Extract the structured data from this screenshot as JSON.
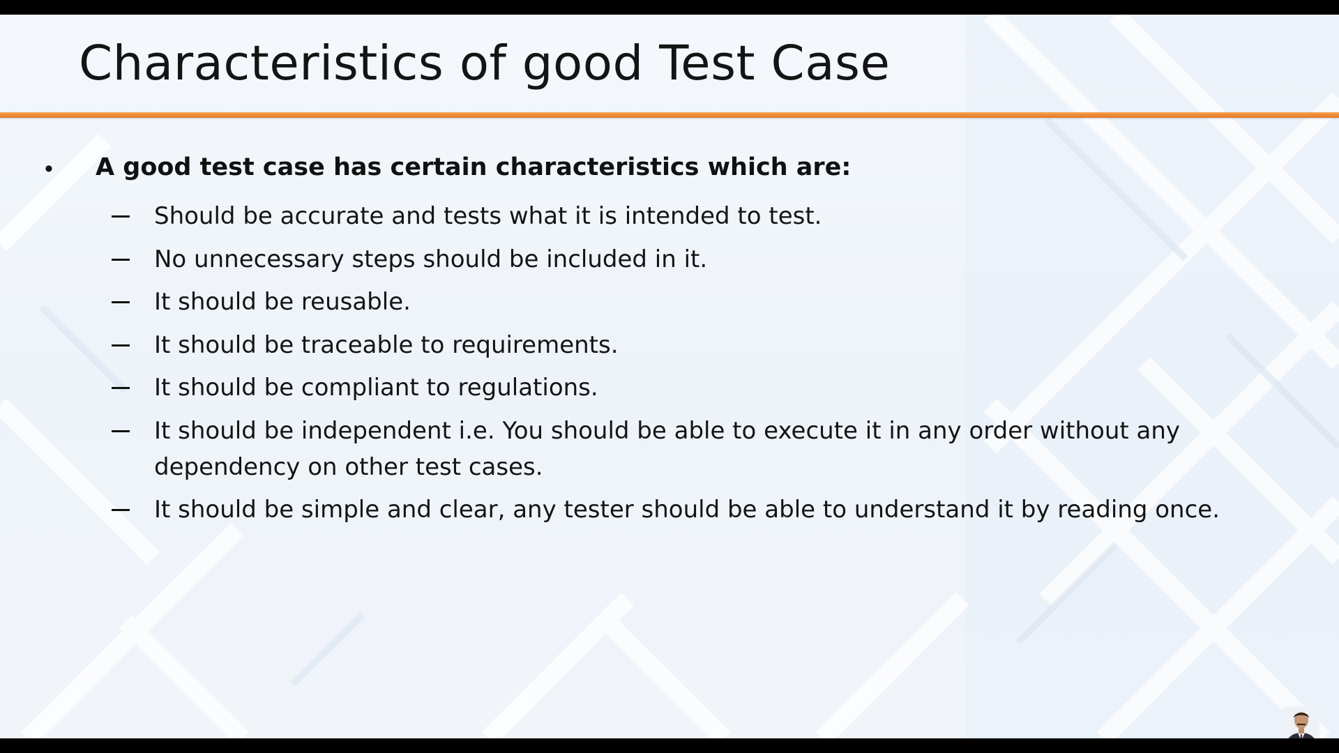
{
  "slide": {
    "title": "Characteristics of good Test Case",
    "accent_color": "#ee8530",
    "lead_bullet": "A good test case has certain characteristics which are:",
    "bullet_glyph": "•",
    "sub_items": [
      "Should be accurate and tests what it is intended to test.",
      "No unnecessary steps should be included in it.",
      "It should be reusable.",
      "It should be traceable to requirements.",
      "It should be compliant to regulations.",
      "It should be independent i.e. You should be able to execute it in any order without any dependency on other test cases.",
      "It should be simple and clear, any tester should be able to understand it by reading once."
    ],
    "presenter_icon": "presenter-avatar-icon"
  }
}
